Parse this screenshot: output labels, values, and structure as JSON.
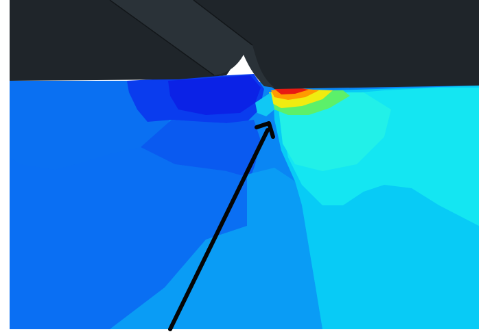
{
  "scene": {
    "subject": "fea-stress-contour",
    "colors": {
      "background": "#ffffff",
      "tool_body": "#1f252a",
      "tool_edge": "#2c343a",
      "workpiece_blue": "#0a66f2",
      "dark_blue": "#0b2ee8",
      "mid_blue": "#0a86f4",
      "light_blue": "#0ab0f6",
      "cyan": "#08d9f6",
      "aqua": "#18f2ee",
      "green": "#46f06a",
      "yellow": "#f6e600",
      "orange": "#ff8a00",
      "red": "#e51818",
      "arrow": "#050505"
    }
  }
}
